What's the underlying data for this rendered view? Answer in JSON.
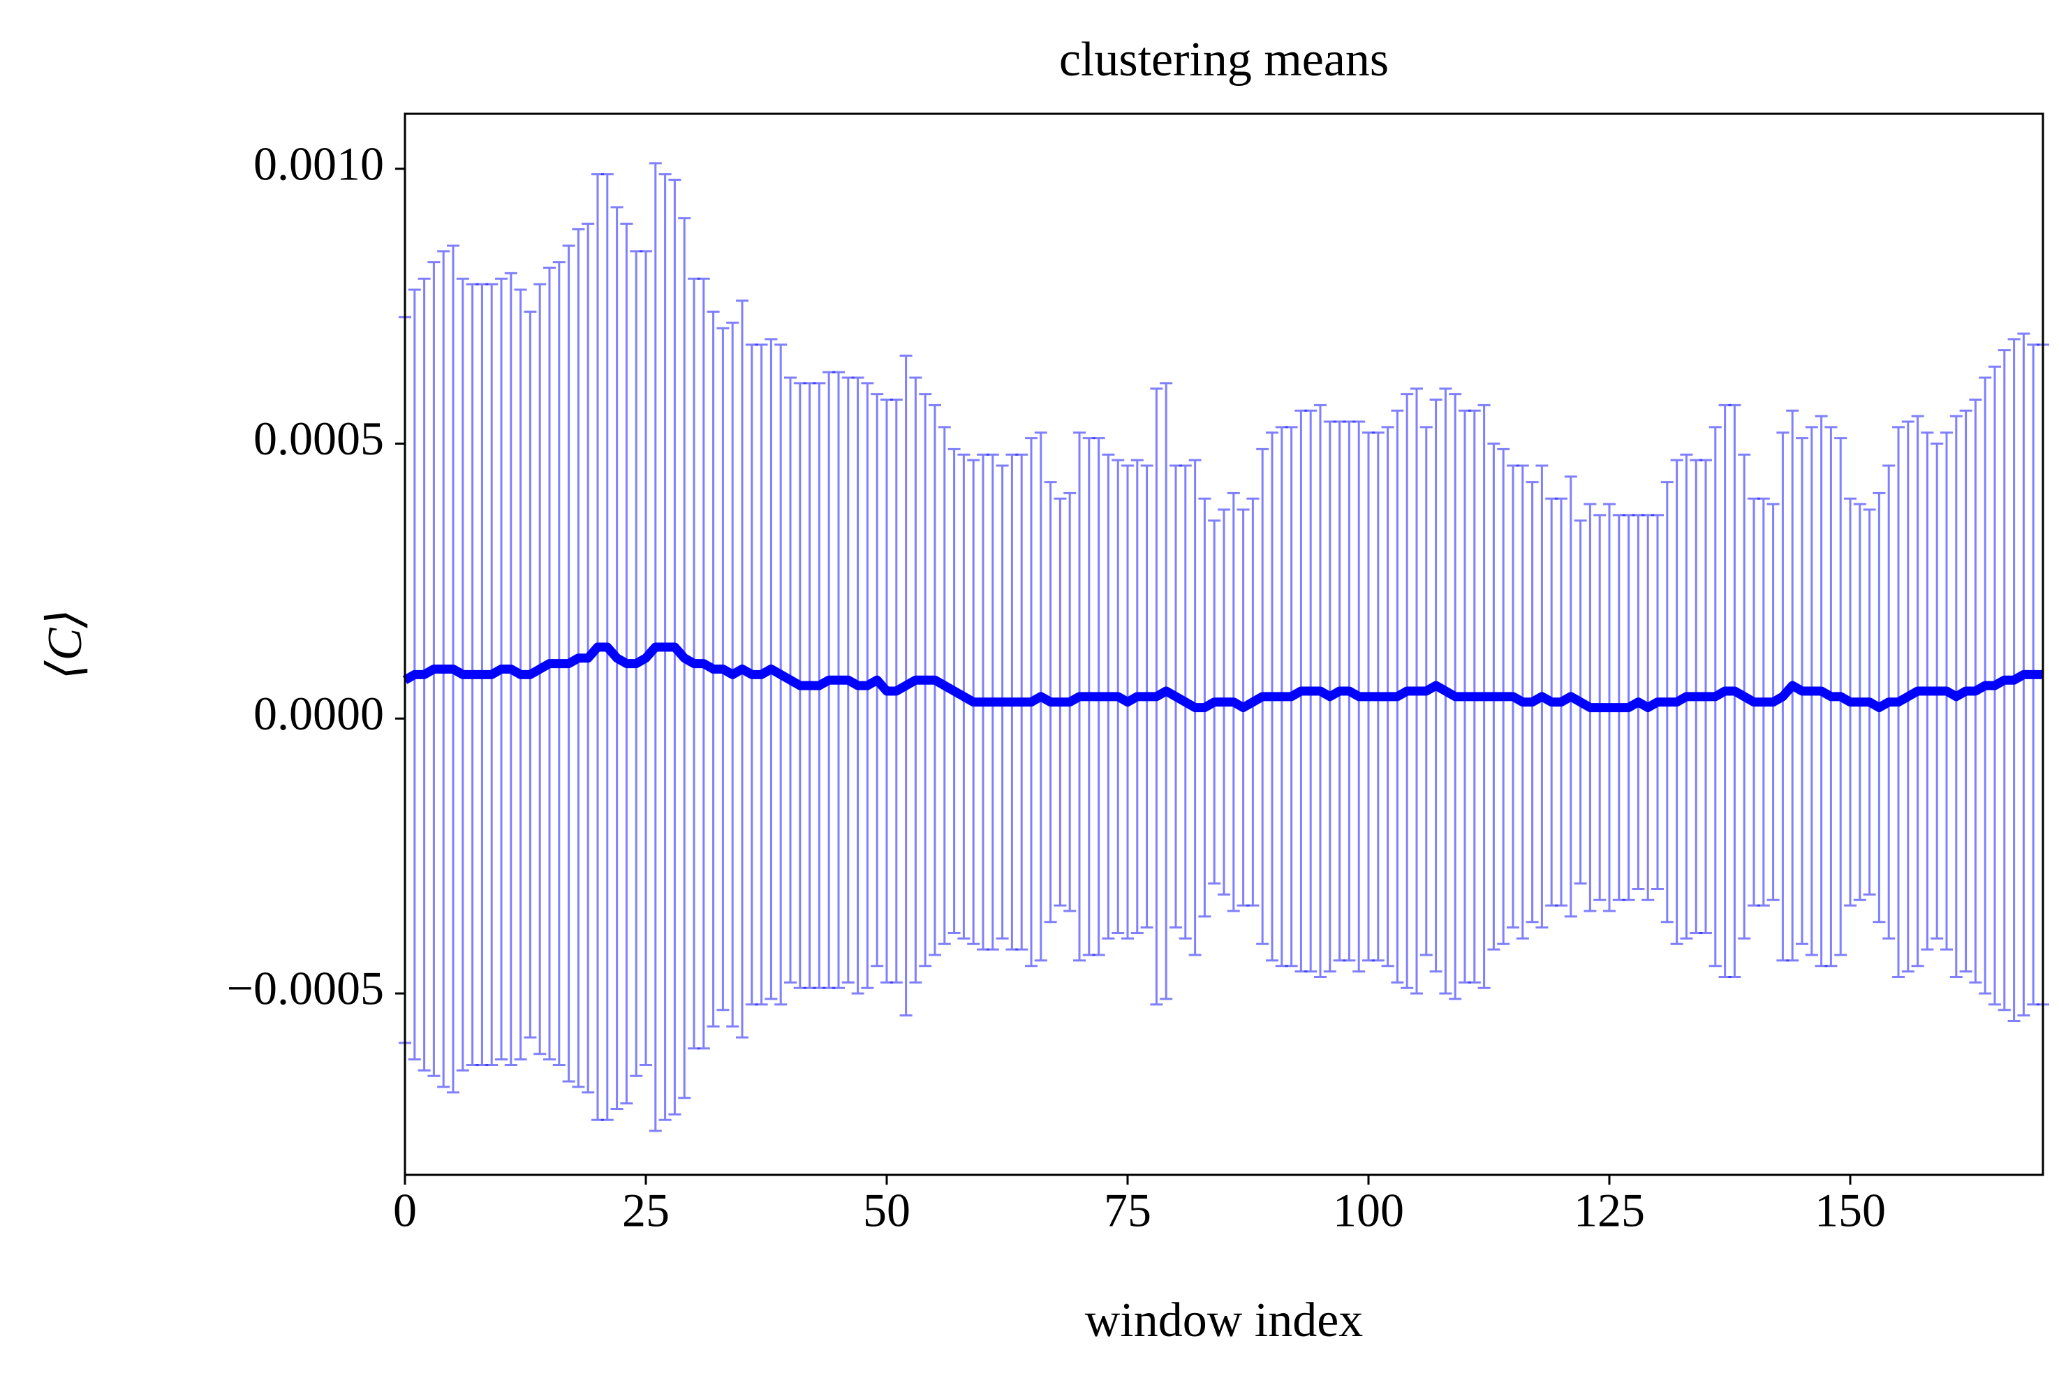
{
  "chart_data": {
    "type": "errorbar-line",
    "title": "clustering means",
    "x_label": "window index",
    "y_label": "⟨C⟩",
    "color": "#0000ff",
    "xlim": [
      0,
      170
    ],
    "ylim": [
      -0.00083,
      0.0011
    ],
    "xticks": [
      0,
      25,
      50,
      75,
      100,
      125,
      150
    ],
    "yticks": [
      {
        "value": -0.0005,
        "label": "−0.0005"
      },
      {
        "value": 0,
        "label": "0.0000"
      },
      {
        "value": 0.0005,
        "label": "0.0005"
      },
      {
        "value": 0.001,
        "label": "0.0010"
      }
    ],
    "x": [
      0,
      1,
      2,
      3,
      4,
      5,
      6,
      7,
      8,
      9,
      10,
      11,
      12,
      13,
      14,
      15,
      16,
      17,
      18,
      19,
      20,
      21,
      22,
      23,
      24,
      25,
      26,
      27,
      28,
      29,
      30,
      31,
      32,
      33,
      34,
      35,
      36,
      37,
      38,
      39,
      40,
      41,
      42,
      43,
      44,
      45,
      46,
      47,
      48,
      49,
      50,
      51,
      52,
      53,
      54,
      55,
      56,
      57,
      58,
      59,
      60,
      61,
      62,
      63,
      64,
      65,
      66,
      67,
      68,
      69,
      70,
      71,
      72,
      73,
      74,
      75,
      76,
      77,
      78,
      79,
      80,
      81,
      82,
      83,
      84,
      85,
      86,
      87,
      88,
      89,
      90,
      91,
      92,
      93,
      94,
      95,
      96,
      97,
      98,
      99,
      100,
      101,
      102,
      103,
      104,
      105,
      106,
      107,
      108,
      109,
      110,
      111,
      112,
      113,
      114,
      115,
      116,
      117,
      118,
      119,
      120,
      121,
      122,
      123,
      124,
      125,
      126,
      127,
      128,
      129,
      130,
      131,
      132,
      133,
      134,
      135,
      136,
      137,
      138,
      139,
      140,
      141,
      142,
      143,
      144,
      145,
      146,
      147,
      148,
      149,
      150,
      151,
      152,
      153,
      154,
      155,
      156,
      157,
      158,
      159,
      160,
      161,
      162,
      163,
      164,
      165,
      166,
      167,
      168,
      169,
      170
    ],
    "values": [
      7e-05,
      8e-05,
      8e-05,
      9e-05,
      9e-05,
      9e-05,
      8e-05,
      8e-05,
      8e-05,
      8e-05,
      9e-05,
      9e-05,
      8e-05,
      8e-05,
      9e-05,
      0.0001,
      0.0001,
      0.0001,
      0.00011,
      0.00011,
      0.00013,
      0.00013,
      0.00011,
      0.0001,
      0.0001,
      0.00011,
      0.00013,
      0.00013,
      0.00013,
      0.00011,
      0.0001,
      0.0001,
      9e-05,
      9e-05,
      8e-05,
      9e-05,
      8e-05,
      8e-05,
      9e-05,
      8e-05,
      7e-05,
      6e-05,
      6e-05,
      6e-05,
      7e-05,
      7e-05,
      7e-05,
      6e-05,
      6e-05,
      7e-05,
      5e-05,
      5e-05,
      6e-05,
      7e-05,
      7e-05,
      7e-05,
      6e-05,
      5e-05,
      4e-05,
      3e-05,
      3e-05,
      3e-05,
      3e-05,
      3e-05,
      3e-05,
      3e-05,
      4e-05,
      3e-05,
      3e-05,
      3e-05,
      4e-05,
      4e-05,
      4e-05,
      4e-05,
      4e-05,
      3e-05,
      4e-05,
      4e-05,
      4e-05,
      5e-05,
      4e-05,
      3e-05,
      2e-05,
      2e-05,
      3e-05,
      3e-05,
      3e-05,
      2e-05,
      3e-05,
      4e-05,
      4e-05,
      4e-05,
      4e-05,
      5e-05,
      5e-05,
      5e-05,
      4e-05,
      5e-05,
      5e-05,
      4e-05,
      4e-05,
      4e-05,
      4e-05,
      4e-05,
      5e-05,
      5e-05,
      5e-05,
      6e-05,
      5e-05,
      4e-05,
      4e-05,
      4e-05,
      4e-05,
      4e-05,
      4e-05,
      4e-05,
      3e-05,
      3e-05,
      4e-05,
      3e-05,
      3e-05,
      4e-05,
      3e-05,
      2e-05,
      2e-05,
      2e-05,
      2e-05,
      2e-05,
      3e-05,
      2e-05,
      3e-05,
      3e-05,
      3e-05,
      4e-05,
      4e-05,
      4e-05,
      4e-05,
      5e-05,
      5e-05,
      4e-05,
      3e-05,
      3e-05,
      3e-05,
      4e-05,
      6e-05,
      5e-05,
      5e-05,
      5e-05,
      4e-05,
      4e-05,
      3e-05,
      3e-05,
      3e-05,
      2e-05,
      3e-05,
      3e-05,
      4e-05,
      5e-05,
      5e-05,
      5e-05,
      5e-05,
      4e-05,
      5e-05,
      5e-05,
      6e-05,
      6e-05,
      7e-05,
      7e-05,
      8e-05,
      8e-05,
      8e-05
    ],
    "errors": [
      0.00066,
      0.0007,
      0.00072,
      0.00074,
      0.00076,
      0.00077,
      0.00072,
      0.00071,
      0.00071,
      0.00071,
      0.00071,
      0.00072,
      0.0007,
      0.00066,
      0.0007,
      0.00072,
      0.00073,
      0.00076,
      0.00078,
      0.00079,
      0.00086,
      0.00086,
      0.00082,
      0.0008,
      0.00075,
      0.00074,
      0.00088,
      0.00086,
      0.00085,
      0.0008,
      0.0007,
      0.0007,
      0.00065,
      0.00062,
      0.00064,
      0.00067,
      0.0006,
      0.0006,
      0.0006,
      0.0006,
      0.00055,
      0.00055,
      0.00055,
      0.00055,
      0.00056,
      0.00056,
      0.00055,
      0.00056,
      0.00055,
      0.00052,
      0.00053,
      0.00053,
      0.0006,
      0.00055,
      0.00052,
      0.0005,
      0.00047,
      0.00044,
      0.00044,
      0.00044,
      0.00045,
      0.00045,
      0.00043,
      0.00045,
      0.00045,
      0.00048,
      0.00048,
      0.0004,
      0.00037,
      0.00038,
      0.00048,
      0.00047,
      0.00047,
      0.00044,
      0.00043,
      0.00043,
      0.00043,
      0.00042,
      0.00056,
      0.00056,
      0.00042,
      0.00043,
      0.00045,
      0.00038,
      0.00033,
      0.00035,
      0.00038,
      0.00036,
      0.00037,
      0.00045,
      0.00048,
      0.00049,
      0.00049,
      0.00051,
      0.00051,
      0.00052,
      0.0005,
      0.00049,
      0.00049,
      0.0005,
      0.00048,
      0.00048,
      0.00049,
      0.00052,
      0.00054,
      0.00055,
      0.00048,
      0.00052,
      0.00055,
      0.00055,
      0.00052,
      0.00052,
      0.00053,
      0.00046,
      0.00045,
      0.00042,
      0.00043,
      0.0004,
      0.00042,
      0.00037,
      0.00037,
      0.0004,
      0.00033,
      0.00037,
      0.00035,
      0.00037,
      0.00035,
      0.00035,
      0.00034,
      0.00035,
      0.00034,
      0.0004,
      0.00044,
      0.00044,
      0.00043,
      0.00043,
      0.00049,
      0.00052,
      0.00052,
      0.00044,
      0.00037,
      0.00037,
      0.00036,
      0.00048,
      0.0005,
      0.00046,
      0.00048,
      0.0005,
      0.00049,
      0.00047,
      0.00037,
      0.00036,
      0.00035,
      0.00039,
      0.00043,
      0.0005,
      0.0005,
      0.0005,
      0.00047,
      0.00045,
      0.00047,
      0.00051,
      0.00051,
      0.00053,
      0.00056,
      0.00058,
      0.0006,
      0.00062,
      0.00062,
      0.0006,
      0.0006
    ]
  }
}
